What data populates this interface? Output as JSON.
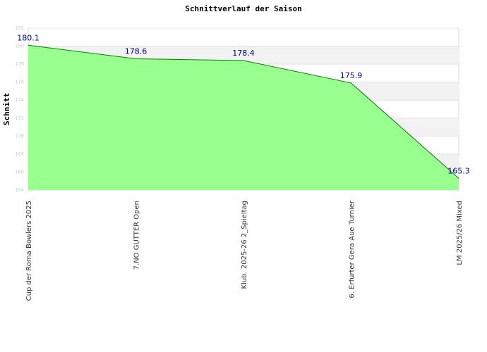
{
  "chart_data": {
    "type": "area",
    "title": "Schnittverlauf der Saison",
    "y_label": "Schnitt",
    "categories": [
      "Cup der Roma Bowlers 2025",
      "7.NO GUTTER Open",
      "Klub. 2025-26  2_Spieltag",
      "6. Erfurter Gera Aue Turnier",
      "LM 2025/26 Mixed"
    ],
    "values": [
      180.1,
      178.6,
      178.4,
      175.9,
      165.3
    ],
    "color": "#008000",
    "fill_color": "#99ff8f",
    "ylim": [
      164,
      182
    ],
    "yticks": [
      164,
      166,
      168,
      170,
      172,
      174,
      176,
      178,
      180,
      182
    ],
    "grid": true
  }
}
